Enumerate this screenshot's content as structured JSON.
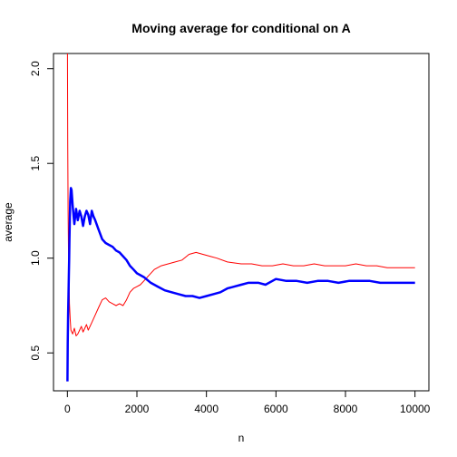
{
  "chart_data": {
    "type": "line",
    "title": "Moving average for conditional on A",
    "xlabel": "n",
    "ylabel": "average",
    "xlim": [
      -400,
      10400
    ],
    "ylim": [
      0.3,
      2.08
    ],
    "x_ticks": [
      0,
      2000,
      4000,
      6000,
      8000,
      10000
    ],
    "x_tick_labels": [
      "0",
      "2000",
      "4000",
      "6000",
      "8000",
      "10000"
    ],
    "y_ticks": [
      0.5,
      1.0,
      1.5,
      2.0
    ],
    "y_tick_labels": [
      "0.5",
      "1.0",
      "1.5",
      "2.0"
    ],
    "grid": false,
    "legend": "none",
    "series": [
      {
        "color": "#ff0000",
        "style": "thin",
        "x": [
          1,
          10,
          20,
          30,
          40,
          50,
          60,
          80,
          100,
          150,
          200,
          250,
          300,
          350,
          400,
          450,
          500,
          550,
          600,
          650,
          700,
          800,
          900,
          1000,
          1100,
          1200,
          1300,
          1400,
          1500,
          1600,
          1700,
          1800,
          1900,
          2000,
          2100,
          2200,
          2300,
          2400,
          2500,
          2700,
          2900,
          3100,
          3300,
          3500,
          3700,
          3900,
          4100,
          4300,
          4600,
          5000,
          5300,
          5600,
          5900,
          6200,
          6500,
          6800,
          7100,
          7400,
          7700,
          8000,
          8300,
          8600,
          8900,
          9200,
          9500,
          9800,
          10000
        ],
        "y": [
          2.08,
          1.6,
          1.25,
          1.05,
          0.95,
          0.85,
          0.76,
          0.68,
          0.62,
          0.6,
          0.63,
          0.59,
          0.6,
          0.62,
          0.64,
          0.61,
          0.63,
          0.65,
          0.62,
          0.64,
          0.66,
          0.7,
          0.74,
          0.78,
          0.79,
          0.77,
          0.76,
          0.75,
          0.76,
          0.75,
          0.78,
          0.82,
          0.84,
          0.85,
          0.86,
          0.88,
          0.9,
          0.92,
          0.94,
          0.96,
          0.97,
          0.98,
          0.99,
          1.02,
          1.03,
          1.02,
          1.01,
          1.0,
          0.98,
          0.97,
          0.97,
          0.96,
          0.96,
          0.97,
          0.96,
          0.96,
          0.97,
          0.96,
          0.96,
          0.96,
          0.97,
          0.96,
          0.96,
          0.95,
          0.95,
          0.95,
          0.95
        ]
      },
      {
        "color": "#0000ff",
        "style": "thick",
        "x": [
          1,
          10,
          20,
          30,
          40,
          50,
          60,
          70,
          80,
          100,
          120,
          150,
          180,
          200,
          250,
          300,
          350,
          400,
          450,
          500,
          550,
          600,
          650,
          700,
          750,
          800,
          900,
          1000,
          1100,
          1200,
          1300,
          1400,
          1500,
          1600,
          1700,
          1800,
          1900,
          2000,
          2200,
          2400,
          2600,
          2800,
          3000,
          3200,
          3400,
          3600,
          3800,
          4000,
          4200,
          4400,
          4600,
          4800,
          5000,
          5200,
          5500,
          5700,
          6000,
          6300,
          6600,
          6900,
          7200,
          7500,
          7800,
          8100,
          8400,
          8700,
          9000,
          9300,
          9600,
          10000
        ],
        "y": [
          0.35,
          0.55,
          0.7,
          0.8,
          0.9,
          1.0,
          1.1,
          1.2,
          1.3,
          1.37,
          1.36,
          1.28,
          1.22,
          1.18,
          1.26,
          1.2,
          1.25,
          1.22,
          1.17,
          1.22,
          1.25,
          1.23,
          1.18,
          1.25,
          1.22,
          1.2,
          1.15,
          1.1,
          1.08,
          1.07,
          1.06,
          1.04,
          1.03,
          1.01,
          0.99,
          0.96,
          0.94,
          0.92,
          0.9,
          0.87,
          0.85,
          0.83,
          0.82,
          0.81,
          0.8,
          0.8,
          0.79,
          0.8,
          0.81,
          0.82,
          0.84,
          0.85,
          0.86,
          0.87,
          0.87,
          0.86,
          0.89,
          0.88,
          0.88,
          0.87,
          0.88,
          0.88,
          0.87,
          0.88,
          0.88,
          0.88,
          0.87,
          0.87,
          0.87,
          0.87
        ]
      }
    ]
  }
}
